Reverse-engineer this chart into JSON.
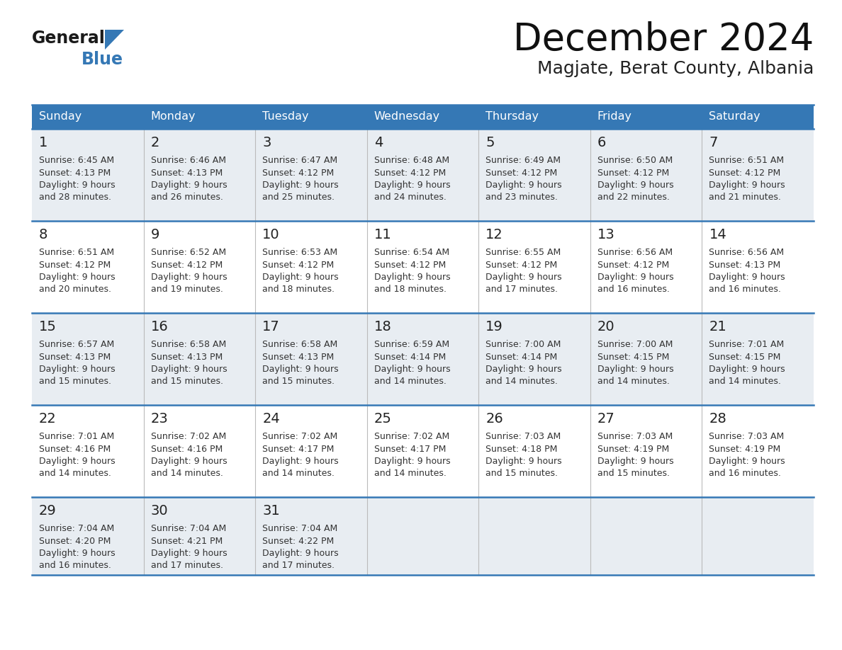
{
  "title": "December 2024",
  "subtitle": "Magjate, Berat County, Albania",
  "header_color": "#3578b5",
  "header_text_color": "#ffffff",
  "row_bg_odd": "#e8edf2",
  "row_bg_even": "#ffffff",
  "day_number_color": "#222222",
  "info_text_color": "#333333",
  "border_color": "#3578b5",
  "grid_line_color": "#aaaaaa",
  "days_of_week": [
    "Sunday",
    "Monday",
    "Tuesday",
    "Wednesday",
    "Thursday",
    "Friday",
    "Saturday"
  ],
  "weeks": [
    [
      {
        "day": "1",
        "sunrise": "6:45 AM",
        "sunset": "4:13 PM",
        "dl1": "Daylight: 9 hours",
        "dl2": "and 28 minutes."
      },
      {
        "day": "2",
        "sunrise": "6:46 AM",
        "sunset": "4:13 PM",
        "dl1": "Daylight: 9 hours",
        "dl2": "and 26 minutes."
      },
      {
        "day": "3",
        "sunrise": "6:47 AM",
        "sunset": "4:12 PM",
        "dl1": "Daylight: 9 hours",
        "dl2": "and 25 minutes."
      },
      {
        "day": "4",
        "sunrise": "6:48 AM",
        "sunset": "4:12 PM",
        "dl1": "Daylight: 9 hours",
        "dl2": "and 24 minutes."
      },
      {
        "day": "5",
        "sunrise": "6:49 AM",
        "sunset": "4:12 PM",
        "dl1": "Daylight: 9 hours",
        "dl2": "and 23 minutes."
      },
      {
        "day": "6",
        "sunrise": "6:50 AM",
        "sunset": "4:12 PM",
        "dl1": "Daylight: 9 hours",
        "dl2": "and 22 minutes."
      },
      {
        "day": "7",
        "sunrise": "6:51 AM",
        "sunset": "4:12 PM",
        "dl1": "Daylight: 9 hours",
        "dl2": "and 21 minutes."
      }
    ],
    [
      {
        "day": "8",
        "sunrise": "6:51 AM",
        "sunset": "4:12 PM",
        "dl1": "Daylight: 9 hours",
        "dl2": "and 20 minutes."
      },
      {
        "day": "9",
        "sunrise": "6:52 AM",
        "sunset": "4:12 PM",
        "dl1": "Daylight: 9 hours",
        "dl2": "and 19 minutes."
      },
      {
        "day": "10",
        "sunrise": "6:53 AM",
        "sunset": "4:12 PM",
        "dl1": "Daylight: 9 hours",
        "dl2": "and 18 minutes."
      },
      {
        "day": "11",
        "sunrise": "6:54 AM",
        "sunset": "4:12 PM",
        "dl1": "Daylight: 9 hours",
        "dl2": "and 18 minutes."
      },
      {
        "day": "12",
        "sunrise": "6:55 AM",
        "sunset": "4:12 PM",
        "dl1": "Daylight: 9 hours",
        "dl2": "and 17 minutes."
      },
      {
        "day": "13",
        "sunrise": "6:56 AM",
        "sunset": "4:12 PM",
        "dl1": "Daylight: 9 hours",
        "dl2": "and 16 minutes."
      },
      {
        "day": "14",
        "sunrise": "6:56 AM",
        "sunset": "4:13 PM",
        "dl1": "Daylight: 9 hours",
        "dl2": "and 16 minutes."
      }
    ],
    [
      {
        "day": "15",
        "sunrise": "6:57 AM",
        "sunset": "4:13 PM",
        "dl1": "Daylight: 9 hours",
        "dl2": "and 15 minutes."
      },
      {
        "day": "16",
        "sunrise": "6:58 AM",
        "sunset": "4:13 PM",
        "dl1": "Daylight: 9 hours",
        "dl2": "and 15 minutes."
      },
      {
        "day": "17",
        "sunrise": "6:58 AM",
        "sunset": "4:13 PM",
        "dl1": "Daylight: 9 hours",
        "dl2": "and 15 minutes."
      },
      {
        "day": "18",
        "sunrise": "6:59 AM",
        "sunset": "4:14 PM",
        "dl1": "Daylight: 9 hours",
        "dl2": "and 14 minutes."
      },
      {
        "day": "19",
        "sunrise": "7:00 AM",
        "sunset": "4:14 PM",
        "dl1": "Daylight: 9 hours",
        "dl2": "and 14 minutes."
      },
      {
        "day": "20",
        "sunrise": "7:00 AM",
        "sunset": "4:15 PM",
        "dl1": "Daylight: 9 hours",
        "dl2": "and 14 minutes."
      },
      {
        "day": "21",
        "sunrise": "7:01 AM",
        "sunset": "4:15 PM",
        "dl1": "Daylight: 9 hours",
        "dl2": "and 14 minutes."
      }
    ],
    [
      {
        "day": "22",
        "sunrise": "7:01 AM",
        "sunset": "4:16 PM",
        "dl1": "Daylight: 9 hours",
        "dl2": "and 14 minutes."
      },
      {
        "day": "23",
        "sunrise": "7:02 AM",
        "sunset": "4:16 PM",
        "dl1": "Daylight: 9 hours",
        "dl2": "and 14 minutes."
      },
      {
        "day": "24",
        "sunrise": "7:02 AM",
        "sunset": "4:17 PM",
        "dl1": "Daylight: 9 hours",
        "dl2": "and 14 minutes."
      },
      {
        "day": "25",
        "sunrise": "7:02 AM",
        "sunset": "4:17 PM",
        "dl1": "Daylight: 9 hours",
        "dl2": "and 14 minutes."
      },
      {
        "day": "26",
        "sunrise": "7:03 AM",
        "sunset": "4:18 PM",
        "dl1": "Daylight: 9 hours",
        "dl2": "and 15 minutes."
      },
      {
        "day": "27",
        "sunrise": "7:03 AM",
        "sunset": "4:19 PM",
        "dl1": "Daylight: 9 hours",
        "dl2": "and 15 minutes."
      },
      {
        "day": "28",
        "sunrise": "7:03 AM",
        "sunset": "4:19 PM",
        "dl1": "Daylight: 9 hours",
        "dl2": "and 16 minutes."
      }
    ],
    [
      {
        "day": "29",
        "sunrise": "7:04 AM",
        "sunset": "4:20 PM",
        "dl1": "Daylight: 9 hours",
        "dl2": "and 16 minutes."
      },
      {
        "day": "30",
        "sunrise": "7:04 AM",
        "sunset": "4:21 PM",
        "dl1": "Daylight: 9 hours",
        "dl2": "and 17 minutes."
      },
      {
        "day": "31",
        "sunrise": "7:04 AM",
        "sunset": "4:22 PM",
        "dl1": "Daylight: 9 hours",
        "dl2": "and 17 minutes."
      },
      null,
      null,
      null,
      null
    ]
  ]
}
